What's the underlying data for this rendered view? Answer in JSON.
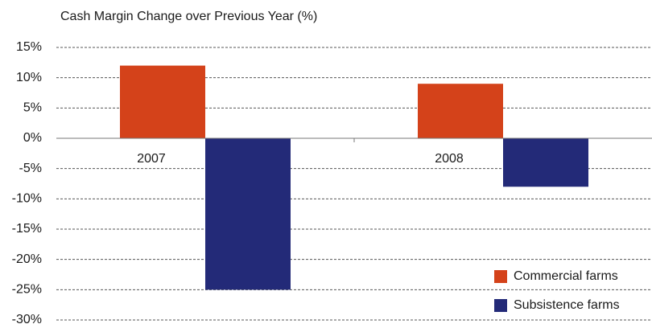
{
  "chart_data": {
    "type": "bar",
    "title": "Cash Margin Change over Previous Year (%)",
    "categories": [
      "2007",
      "2008"
    ],
    "series": [
      {
        "name": "Commercial farms",
        "color": "#d4421a",
        "values": [
          12,
          9
        ]
      },
      {
        "name": "Subsistence farms",
        "color": "#232a78",
        "values": [
          -25,
          -8
        ]
      }
    ],
    "ylim": [
      -30,
      15
    ],
    "yticks": [
      {
        "value": 15,
        "label": "15%"
      },
      {
        "value": 10,
        "label": "10%"
      },
      {
        "value": 5,
        "label": "5%"
      },
      {
        "value": 0,
        "label": "0%"
      },
      {
        "value": -5,
        "label": "-5%"
      },
      {
        "value": -10,
        "label": "-10%"
      },
      {
        "value": -15,
        "label": "-15%"
      },
      {
        "value": -20,
        "label": "-20%"
      },
      {
        "value": -25,
        "label": "-25%"
      },
      {
        "value": -30,
        "label": "-30%"
      }
    ],
    "grid": true,
    "legend": "lower right"
  }
}
